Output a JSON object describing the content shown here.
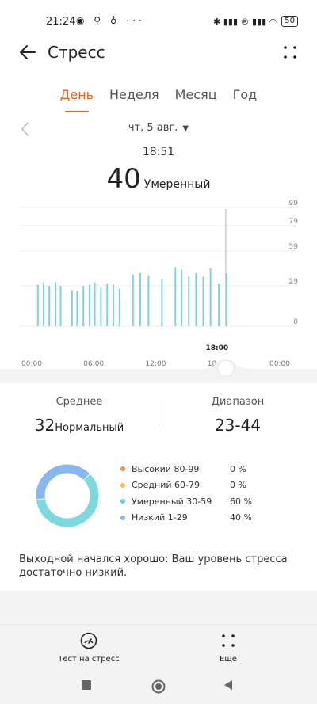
{
  "status_bar": {
    "time": "21:24",
    "left_icons": "◉ ⚲ ♁ ···",
    "right_icons": "✱ ▮▮▮ ® ▮▮▮ ◠",
    "battery": "50"
  },
  "header": {
    "title": "Стресс"
  },
  "tabs": [
    {
      "label": "День",
      "active": true
    },
    {
      "label": "Неделя"
    },
    {
      "label": "Месяц"
    },
    {
      "label": "Год"
    }
  ],
  "date": {
    "label": "чт, 5 авг."
  },
  "selection": {
    "time": "18:51",
    "value": "40",
    "level": "Умеренный"
  },
  "chart_data": {
    "type": "bar",
    "y_ticks": [
      "99",
      "79",
      "59",
      "29",
      "0"
    ],
    "y_tick_values": [
      99,
      79,
      59,
      29,
      0
    ],
    "x_ticks": [
      "00:00",
      "06:00",
      "12:00",
      "18:00",
      "00:00"
    ],
    "x_tick_hours": [
      0,
      6,
      12,
      18,
      24
    ],
    "x_range_hours": [
      0,
      24
    ],
    "selected_label": "18:00",
    "selected_hour": 18.85,
    "bars": [
      {
        "h": 0.6,
        "v": 30
      },
      {
        "h": 1.15,
        "v": 32
      },
      {
        "h": 1.7,
        "v": 29
      },
      {
        "h": 2.3,
        "v": 32
      },
      {
        "h": 2.8,
        "v": 29
      },
      {
        "h": 3.9,
        "v": 26
      },
      {
        "h": 4.4,
        "v": 25
      },
      {
        "h": 5.0,
        "v": 29
      },
      {
        "h": 5.6,
        "v": 30
      },
      {
        "h": 6.1,
        "v": 32
      },
      {
        "h": 6.7,
        "v": 28
      },
      {
        "h": 7.3,
        "v": 31
      },
      {
        "h": 7.9,
        "v": 30
      },
      {
        "h": 8.5,
        "v": 27
      },
      {
        "h": 9.8,
        "v": 39
      },
      {
        "h": 10.5,
        "v": 40
      },
      {
        "h": 11.3,
        "v": 38
      },
      {
        "h": 12.6,
        "v": 35
      },
      {
        "h": 13.9,
        "v": 45
      },
      {
        "h": 14.5,
        "v": 43
      },
      {
        "h": 15.2,
        "v": 37
      },
      {
        "h": 15.9,
        "v": 40
      },
      {
        "h": 16.6,
        "v": 37
      },
      {
        "h": 17.3,
        "v": 44
      },
      {
        "h": 18.1,
        "v": 31
      },
      {
        "h": 18.85,
        "v": 40
      }
    ],
    "colors": {
      "bar": "#7fd3e0",
      "selected": "#cfcfcf"
    }
  },
  "stats": {
    "average_label": "Среднее",
    "average_value": "32",
    "average_level": "Нормальный",
    "range_label": "Диапазон",
    "range_value": "23-44"
  },
  "donut": {
    "segments": [
      {
        "fraction": 0.6,
        "color": "#7dd9dd"
      },
      {
        "fraction": 0.4,
        "color": "#86b8ef"
      }
    ]
  },
  "legend": [
    {
      "name": "Высокий 80-99",
      "percent": "0 %",
      "color": "#f0914f"
    },
    {
      "name": "Средний 60-79",
      "percent": "0 %",
      "color": "#f5c343"
    },
    {
      "name": "Умеренный 30-59",
      "percent": "60 %",
      "color": "#5fcfd4"
    },
    {
      "name": "Низкий 1-29",
      "percent": "40 %",
      "color": "#86b8ef"
    }
  ],
  "summary": "Выходной начался хорошо: Ваш уровень стресса достаточно низкий.",
  "bottom_bar": {
    "stress_test_label": "Тест на стресс",
    "more_label": "Еще"
  },
  "accent_color": "#e0661f"
}
